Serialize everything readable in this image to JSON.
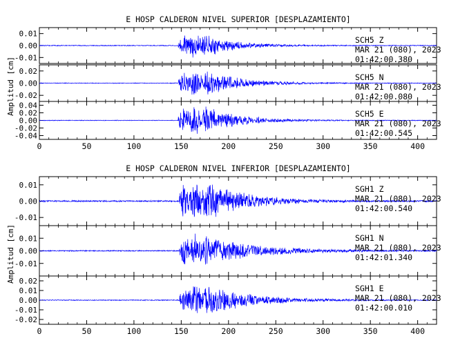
{
  "figure": {
    "ylabel": "Amplitud [cm]"
  },
  "chart_data": [
    {
      "type": "line",
      "title": "E HOSP CALDERON NIVEL SUPERIOR [DESPLAZAMIENTO]",
      "xlabel": "",
      "ylabel": "Amplitud [cm]",
      "xlim": [
        0,
        420
      ],
      "xticks": [
        0,
        50,
        100,
        150,
        200,
        250,
        300,
        350,
        400
      ],
      "grid": false,
      "line_color": "#0000ff",
      "traces": [
        {
          "station": "SCH5",
          "component": "Z",
          "date": "MAR 21 (080), 2023",
          "time": "01:42:00.380",
          "ylim": [
            -0.015,
            0.015
          ],
          "yticks": [
            0.01,
            0.0,
            -0.01
          ],
          "yticklabels": [
            "0.01",
            "0.00",
            "-0.01"
          ],
          "peak_amplitude": 0.012,
          "onset_s": 147,
          "strong_end_s": 215,
          "noise_level": 0.0004
        },
        {
          "station": "SCH5",
          "component": "N",
          "date": "MAR 21 (080), 2023",
          "time": "01:42:00.080",
          "ylim": [
            -0.03,
            0.03
          ],
          "yticks": [
            0.02,
            0.0,
            -0.02
          ],
          "yticklabels": [
            "0.02",
            "0.00",
            "-0.02"
          ],
          "peak_amplitude": 0.025,
          "onset_s": 147,
          "strong_end_s": 230,
          "noise_level": 0.0006
        },
        {
          "station": "SCH5",
          "component": "E",
          "date": "MAR 21 (080), 2023",
          "time": "01:42:00.545",
          "ylim": [
            -0.05,
            0.05
          ],
          "yticks": [
            0.04,
            0.02,
            0.0,
            -0.02,
            -0.04
          ],
          "yticklabels": [
            "0.04",
            "0.02",
            "0.00",
            "-0.02",
            "-0.04"
          ],
          "peak_amplitude": 0.045,
          "onset_s": 147,
          "strong_end_s": 225,
          "noise_level": 0.001
        }
      ]
    },
    {
      "type": "line",
      "title": "E HOSP CALDERON NIVEL INFERIOR [DESPLAZAMIENTO]",
      "xlabel": "",
      "ylabel": "Amplitud [cm]",
      "xlim": [
        0,
        420
      ],
      "xticks": [
        0,
        50,
        100,
        150,
        200,
        250,
        300,
        350,
        400
      ],
      "grid": false,
      "line_color": "#0000ff",
      "traces": [
        {
          "station": "SGH1",
          "component": "Z",
          "date": "MAR 21 (080), 2023",
          "time": "01:42:00.540",
          "ylim": [
            -0.015,
            0.015
          ],
          "yticks": [
            0.01,
            0.0,
            -0.01
          ],
          "yticklabels": [
            "0.01",
            "0.00",
            "-0.01"
          ],
          "peak_amplitude": 0.014,
          "onset_s": 148,
          "strong_end_s": 240,
          "noise_level": 0.0005
        },
        {
          "station": "SGH1",
          "component": "N",
          "date": "MAR 21 (080), 2023",
          "time": "01:42:01.340",
          "ylim": [
            -0.02,
            0.02
          ],
          "yticks": [
            0.01,
            0.0,
            -0.01
          ],
          "yticklabels": [
            "0.01",
            "0.00",
            "-0.01"
          ],
          "peak_amplitude": 0.015,
          "onset_s": 148,
          "strong_end_s": 260,
          "noise_level": 0.0005
        },
        {
          "station": "SGH1",
          "component": "E",
          "date": "MAR 21 (080), 2023",
          "time": "01:42:00.010",
          "ylim": [
            -0.025,
            0.025
          ],
          "yticks": [
            0.02,
            0.01,
            0.0,
            -0.01,
            -0.02
          ],
          "yticklabels": [
            "0.02",
            "0.01",
            "0.00",
            "-0.01",
            "-0.02"
          ],
          "peak_amplitude": 0.02,
          "onset_s": 148,
          "strong_end_s": 250,
          "noise_level": 0.0005
        }
      ]
    }
  ]
}
